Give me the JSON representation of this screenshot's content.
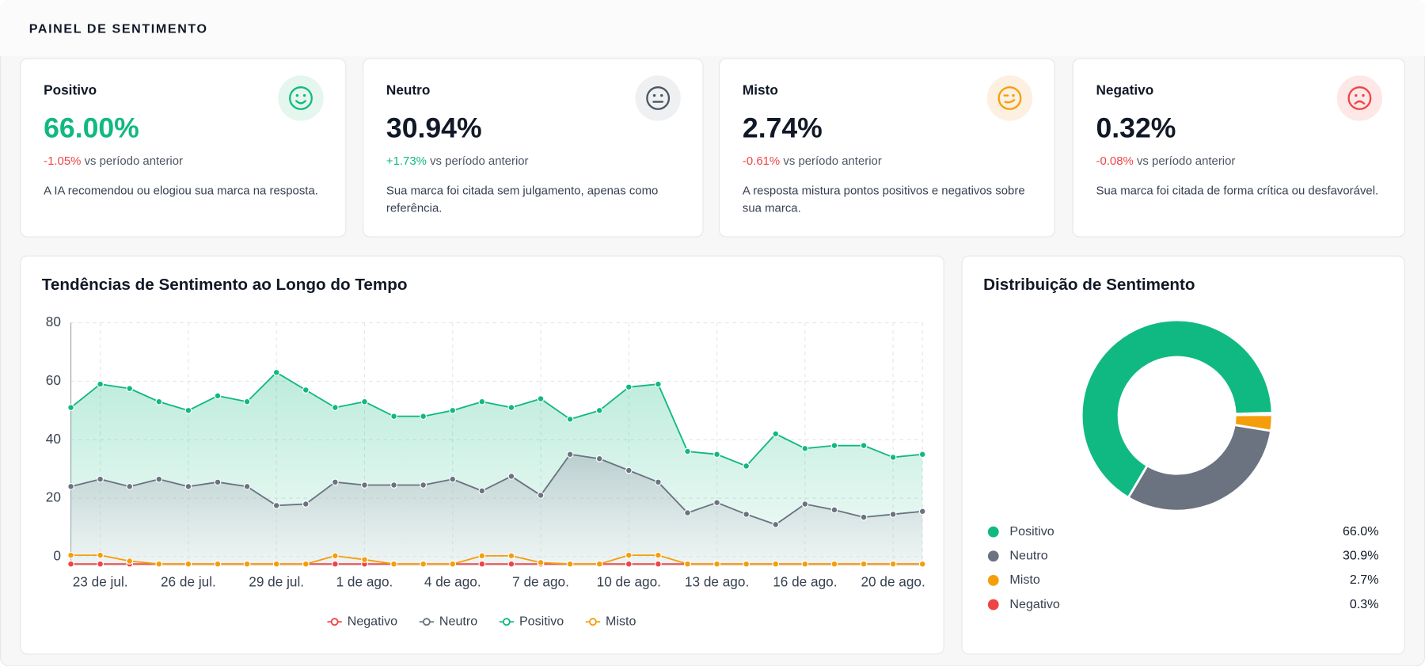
{
  "header": {
    "title": "PAINEL DE SENTIMENTO"
  },
  "cards": [
    {
      "label": "Positivo",
      "value": "66.00%",
      "change": "-1.05%",
      "change_suffix": "vs período anterior",
      "description": "A IA recomendou ou elogiou sua marca na resposta."
    },
    {
      "label": "Neutro",
      "value": "30.94%",
      "change": "+1.73%",
      "change_suffix": "vs período anterior",
      "description": "Sua marca foi citada sem julgamento, apenas como referência."
    },
    {
      "label": "Misto",
      "value": "2.74%",
      "change": "-0.61%",
      "change_suffix": "vs período anterior",
      "description": "A resposta mistura pontos positivos e negativos sobre sua marca."
    },
    {
      "label": "Negativo",
      "value": "0.32%",
      "change": "-0.08%",
      "change_suffix": "vs período anterior",
      "description": "Sua marca foi citada de forma crítica ou desfavorável."
    }
  ],
  "chart_data": [
    {
      "type": "line",
      "title": "Tendências de Sentimento ao Longo do Tempo",
      "categories": [
        null,
        "23 de jul.",
        null,
        null,
        "26 de jul.",
        null,
        null,
        "29 de jul.",
        null,
        null,
        "1 de ago.",
        null,
        null,
        "4 de ago.",
        null,
        null,
        "7 de ago.",
        null,
        null,
        "10 de ago.",
        null,
        null,
        "13 de ago.",
        null,
        null,
        "16 de ago.",
        null,
        null,
        "20 de ago.",
        null
      ],
      "series": [
        {
          "name": "Negativo",
          "color": "#ef4444",
          "area": false,
          "values": [
            -2.5,
            -2.5,
            -2.5,
            -2.5,
            -2.5,
            -2.5,
            -2.5,
            -2.5,
            -2.5,
            -2.5,
            -2.5,
            -2.5,
            -2.5,
            -2.5,
            -2.5,
            -2.5,
            -2.5,
            -2.5,
            -2.5,
            -2.5,
            -2.5,
            -2.5,
            -2.5,
            -2.5,
            -2.5,
            -2.5,
            -2.5,
            -2.5,
            -2.5,
            -2.5
          ]
        },
        {
          "name": "Neutro",
          "color": "#6b7280",
          "area": true,
          "values": [
            24,
            26.5,
            24,
            26.5,
            24,
            25.5,
            24,
            17.5,
            18,
            25.5,
            24.5,
            24.5,
            24.5,
            26.5,
            22.5,
            27.5,
            21,
            35,
            33.5,
            29.5,
            25.5,
            15,
            18.5,
            14.5,
            11,
            18,
            16,
            13.5,
            14.5,
            15.5
          ]
        },
        {
          "name": "Positivo",
          "color": "#10b981",
          "area": true,
          "values": [
            51,
            59,
            57.5,
            53,
            50,
            55,
            53,
            63,
            57,
            51,
            53,
            48,
            48,
            50,
            53,
            51,
            54,
            47,
            50,
            58,
            59,
            36,
            35,
            31,
            42,
            37,
            38,
            38,
            34,
            35
          ]
        },
        {
          "name": "Misto",
          "color": "#f59e0b",
          "area": false,
          "values": [
            0.5,
            0.5,
            -1.5,
            -2.5,
            -2.5,
            -2.5,
            -2.5,
            -2.5,
            -2.5,
            0.3,
            -1,
            -2.5,
            -2.5,
            -2.5,
            0.3,
            0.3,
            -2,
            -2.5,
            -2.5,
            0.5,
            0.5,
            -2.5,
            -2.5,
            -2.5,
            -2.5,
            -2.5,
            -2.5,
            -2.5,
            -2.5,
            -2.5
          ]
        }
      ],
      "ylim": [
        -3,
        80
      ],
      "yticks": [
        0,
        20,
        40,
        60,
        80
      ],
      "grid": true,
      "legend": "bottom"
    },
    {
      "type": "pie",
      "title": "Distribuição de Sentimento",
      "categories": [
        "Positivo",
        "Neutro",
        "Misto",
        "Negativo"
      ],
      "values": [
        66.0,
        30.9,
        2.7,
        0.3
      ],
      "value_labels": [
        "66.0%",
        "30.9%",
        "2.7%",
        "0.3%"
      ],
      "colors": [
        "#10b981",
        "#6b7280",
        "#f59e0b",
        "#ef4444"
      ],
      "hole": 0.61,
      "legend": "bottom"
    }
  ]
}
